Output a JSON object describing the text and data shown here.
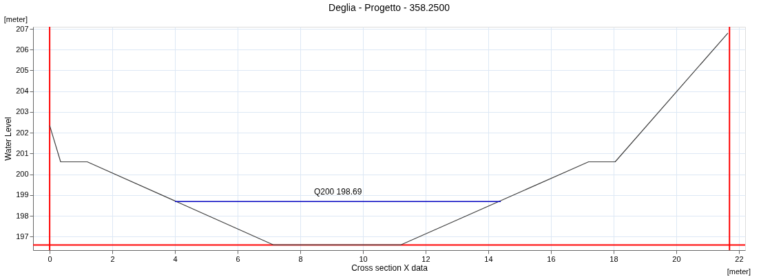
{
  "chart_data": {
    "type": "line",
    "title": "Deglia - Progetto - 358.2500",
    "xlabel": "Cross section X data",
    "ylabel": "Water Level",
    "series": [
      {
        "color": "#404040",
        "x": [
          0,
          0.35,
          1.2,
          7.15,
          11.2,
          17.2,
          18.05,
          21.65
        ],
        "values": [
          202.35,
          200.6,
          200.6,
          196.6,
          196.6,
          200.6,
          200.6,
          206.8
        ]
      },
      {
        "color": "#0000c0",
        "x": [
          4.0,
          14.4
        ],
        "values": [
          198.69,
          198.69
        ]
      }
    ],
    "annotations": [
      {
        "text": "Q200  198.69",
        "x": 9.2,
        "y": 198.69
      },
      "[meter]",
      "[meter]"
    ],
    "ref_lines": [
      {
        "axis": "x",
        "value": 0,
        "color": "#ff0000"
      },
      {
        "axis": "x",
        "value": 21.7,
        "color": "#ff0000"
      },
      {
        "axis": "y",
        "value": 196.6,
        "color": "#ff0000"
      }
    ],
    "xlim": [
      -0.53,
      22.2
    ],
    "ylim": [
      196.35,
      207.1
    ],
    "xticks": [
      0,
      2,
      4,
      6,
      8,
      10,
      12,
      14,
      16,
      18,
      20,
      22
    ],
    "yticks": [
      197,
      198,
      199,
      200,
      201,
      202,
      203,
      204,
      205,
      206,
      207
    ],
    "grid": true,
    "marker": "none",
    "line_style": "solid"
  }
}
